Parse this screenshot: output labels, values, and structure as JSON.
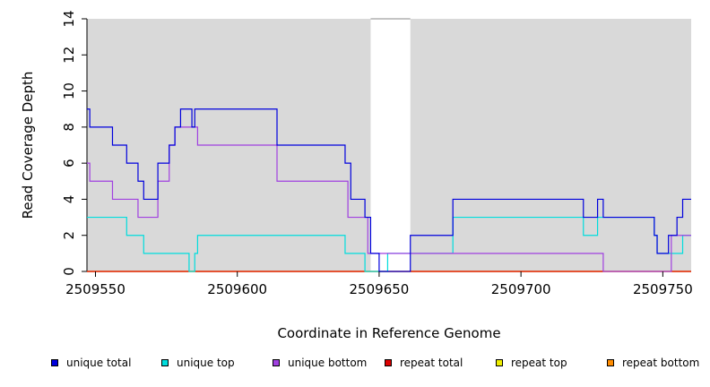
{
  "chart_data": {
    "type": "line",
    "title": "",
    "xlabel": "Coordinate in Reference Genome",
    "ylabel": "Read Coverage Depth",
    "xlim": [
      2509547,
      2509760
    ],
    "ylim": [
      0,
      14
    ],
    "xticks": [
      2509550,
      2509600,
      2509650,
      2509700,
      2509750
    ],
    "xtick_labels": [
      "2509550",
      "2509600",
      "2509650",
      "2509700",
      "2509750"
    ],
    "yticks": [
      0,
      2,
      4,
      6,
      8,
      10,
      12,
      14
    ],
    "ytick_labels": [
      "0",
      "2",
      "4",
      "6",
      "8",
      "10",
      "12",
      "14"
    ],
    "background_color": "#d9d9d9",
    "gap_regions": [
      [
        2509647,
        2509661
      ]
    ],
    "series": [
      {
        "name": "unique total",
        "color": "#0000dd",
        "x": [
          2509547,
          2509548,
          2509556,
          2509561,
          2509565,
          2509567,
          2509572,
          2509576,
          2509578,
          2509580,
          2509584,
          2509585,
          2509614,
          2509638,
          2509640,
          2509645,
          2509647,
          2509650,
          2509653,
          2509661,
          2509676,
          2509722,
          2509727,
          2509729,
          2509747,
          2509748,
          2509752,
          2509755,
          2509757,
          2509760
        ],
        "y": [
          9,
          8,
          7,
          6,
          5,
          4,
          6,
          7,
          8,
          9,
          8,
          9,
          7,
          6,
          4,
          3,
          1,
          0,
          0,
          2,
          4,
          3,
          4,
          3,
          2,
          1,
          2,
          3,
          4,
          4
        ]
      },
      {
        "name": "unique top",
        "color": "#00dddd",
        "x": [
          2509547,
          2509561,
          2509567,
          2509583,
          2509585,
          2509586,
          2509638,
          2509645,
          2509646,
          2509653,
          2509661,
          2509676,
          2509722,
          2509727,
          2509728,
          2509747,
          2509748,
          2509757,
          2509760
        ],
        "y": [
          3,
          2,
          1,
          0,
          1,
          2,
          1,
          0,
          0,
          1,
          1,
          3,
          2,
          3,
          3,
          2,
          1,
          2,
          2
        ]
      },
      {
        "name": "unique bottom",
        "color": "#a040e0",
        "x": [
          2509547,
          2509548,
          2509556,
          2509565,
          2509572,
          2509576,
          2509578,
          2509586,
          2509614,
          2509639,
          2509646,
          2509729,
          2509752,
          2509753,
          2509760
        ],
        "y": [
          6,
          5,
          4,
          3,
          5,
          7,
          8,
          7,
          5,
          3,
          1,
          0,
          0,
          2,
          2
        ]
      },
      {
        "name": "repeat total",
        "color": "#dd0000",
        "x": [
          2509547,
          2509760
        ],
        "y": [
          0,
          0
        ]
      },
      {
        "name": "repeat top",
        "color": "#eeee00",
        "x": [
          2509547,
          2509760
        ],
        "y": [
          0,
          0
        ]
      },
      {
        "name": "repeat bottom",
        "color": "#ff8c00",
        "x": [
          2509547,
          2509760
        ],
        "y": [
          0,
          0
        ]
      }
    ],
    "legend_position": "bottom"
  },
  "legend": {
    "items": [
      {
        "label": "unique total",
        "color": "#0000dd"
      },
      {
        "label": "unique top",
        "color": "#00dddd"
      },
      {
        "label": "unique bottom",
        "color": "#a040e0"
      },
      {
        "label": "repeat total",
        "color": "#dd0000"
      },
      {
        "label": "repeat top",
        "color": "#eeee00"
      },
      {
        "label": "repeat bottom",
        "color": "#ff8c00"
      }
    ]
  }
}
